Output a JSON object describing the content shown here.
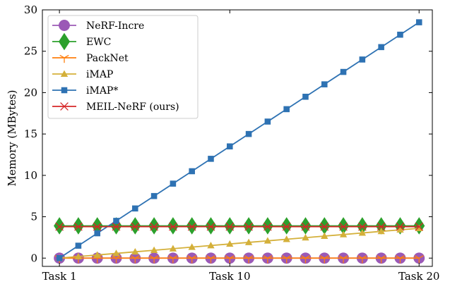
{
  "chart_data": {
    "type": "line",
    "ylabel": "Memory (MBytes)",
    "xlabel": "",
    "x": [
      1,
      2,
      3,
      4,
      5,
      6,
      7,
      8,
      9,
      10,
      11,
      12,
      13,
      14,
      15,
      16,
      17,
      18,
      19,
      20
    ],
    "xlim": [
      0.1,
      20.7
    ],
    "ylim": [
      -1,
      30
    ],
    "xticks": [
      1,
      10,
      20
    ],
    "xtick_labels": [
      "Task 1",
      "Task 10",
      "Task 20"
    ],
    "yticks": [
      0,
      5,
      10,
      15,
      20,
      25,
      30
    ],
    "ytick_labels": [
      "0",
      "5",
      "10",
      "15",
      "20",
      "25",
      "30"
    ],
    "grid": false,
    "legend_position": "top-left",
    "series": [
      {
        "name": "NeRF-Incre",
        "color": "#9b59b6",
        "marker": "circle",
        "values": [
          0,
          0,
          0,
          0,
          0,
          0,
          0,
          0,
          0,
          0,
          0,
          0,
          0,
          0,
          0,
          0,
          0,
          0,
          0,
          0
        ]
      },
      {
        "name": "EWC",
        "color": "#2ca02c",
        "marker": "diamond",
        "values": [
          3.9,
          3.9,
          3.9,
          3.9,
          3.9,
          3.9,
          3.9,
          3.9,
          3.9,
          3.9,
          3.9,
          3.9,
          3.9,
          3.9,
          3.9,
          3.9,
          3.9,
          3.9,
          3.9,
          3.9
        ]
      },
      {
        "name": "PackNet",
        "color": "#ff7f0e",
        "marker": "tri_down",
        "values": [
          0,
          0,
          0,
          0,
          0,
          0,
          0,
          0,
          0,
          0,
          0,
          0,
          0,
          0,
          0,
          0,
          0,
          0,
          0,
          0
        ]
      },
      {
        "name": "iMAP",
        "color": "#d4b03a",
        "marker": "triangle",
        "values": [
          0,
          0.19,
          0.38,
          0.57,
          0.76,
          0.95,
          1.14,
          1.33,
          1.52,
          1.71,
          1.9,
          2.09,
          2.28,
          2.47,
          2.66,
          2.85,
          3.04,
          3.23,
          3.42,
          3.6
        ]
      },
      {
        "name": "iMAP*",
        "color": "#2e72b3",
        "marker": "square",
        "values": [
          0,
          1.5,
          3.0,
          4.5,
          6.0,
          7.5,
          9.0,
          10.5,
          12.0,
          13.5,
          15.0,
          16.5,
          18.0,
          19.5,
          21.0,
          22.5,
          24.0,
          25.5,
          27.0,
          28.5
        ]
      },
      {
        "name": "MEIL-NeRF (ours)",
        "color": "#d62728",
        "marker": "x",
        "values": [
          3.8,
          3.8,
          3.8,
          3.8,
          3.8,
          3.8,
          3.8,
          3.8,
          3.8,
          3.8,
          3.8,
          3.8,
          3.8,
          3.8,
          3.8,
          3.8,
          3.8,
          3.8,
          3.8,
          3.8
        ]
      }
    ]
  }
}
